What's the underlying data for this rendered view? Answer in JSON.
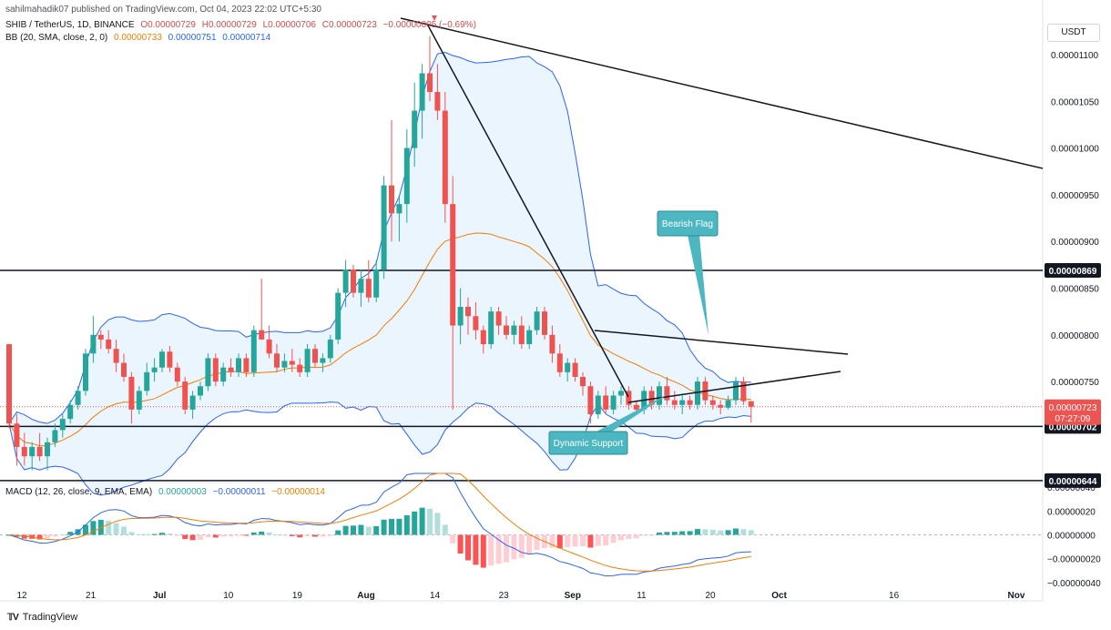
{
  "published": "sahilmahadik07 published on TradingView.com, Oct 04, 2023 22:02 UTC+5:30",
  "symbol_line": {
    "symbol": "SHIB / TetherUS, 1D, BINANCE",
    "o": "O0.00000729",
    "h": "H0.00000729",
    "l": "L0.00000706",
    "c": "C0.00000723",
    "change": "−0.00000005 (−0.69%)"
  },
  "bb_line": {
    "label": "BB (20, SMA, close, 2, 0)",
    "basis": "0.00000733",
    "upper": "0.00000751",
    "lower": "0.00000714"
  },
  "macd_line": {
    "label": "MACD (12, 26, close, 9, EMA, EMA)",
    "hist": "0.00000003",
    "macd": "−0.00000011",
    "signal": "−0.00000014"
  },
  "currency": "USDT",
  "brand": "TradingView",
  "colors": {
    "up": "#26a69a",
    "down": "#ef5350",
    "bb_line": "#2962ff",
    "bb_fill": "#e3f2fd",
    "basis": "#f57c00",
    "callout": "#4cb6c1"
  },
  "chart_data": {
    "type": "candlestick",
    "price_axis": {
      "ticks": [
        "0.00001100",
        "0.00001050",
        "0.00001000",
        "0.00000950",
        "0.00000900",
        "0.00000850",
        "0.00000800",
        "0.00000750"
      ],
      "tick_values": [
        1.1e-05,
        1.05e-05,
        1e-05,
        9.5e-06,
        9e-06,
        8.5e-06,
        8e-06,
        7.5e-06
      ]
    },
    "macd_axis": {
      "ticks": [
        "0.00000040",
        "0.00000020",
        "0.00000000",
        "−0.00000020",
        "−0.00000040"
      ],
      "tick_values": [
        4e-07,
        2e-07,
        0,
        -2e-07,
        -4e-07
      ]
    },
    "x_axis": {
      "labels": [
        "12",
        "21",
        "Jul",
        "10",
        "19",
        "Aug",
        "14",
        "23",
        "Sep",
        "11",
        "20",
        "Oct",
        "16",
        "Nov"
      ],
      "label_bars": [
        0,
        9,
        18,
        27,
        36,
        45,
        54,
        63,
        72,
        81,
        90,
        99,
        114,
        130
      ]
    },
    "horizontal_levels": [
      {
        "label": "0.00000869",
        "value": 8.69e-06
      },
      {
        "label": "0.00000702",
        "value": 7.02e-06
      },
      {
        "label": "0.00000644",
        "value": 6.44e-06
      }
    ],
    "current_price": {
      "label": "0.00000723",
      "countdown": "07:27:09",
      "value": 7.23e-06
    },
    "annotations": [
      "Bearish Flag",
      "Dynamic Support"
    ],
    "candles": [
      [
        7.9,
        7.9,
        7.0,
        7.05
      ],
      [
        7.05,
        7.15,
        6.6,
        6.8
      ],
      [
        6.8,
        6.95,
        6.6,
        6.7
      ],
      [
        6.7,
        6.85,
        6.55,
        6.8
      ],
      [
        6.8,
        6.95,
        6.65,
        6.7
      ],
      [
        6.7,
        6.9,
        6.55,
        6.85
      ],
      [
        6.85,
        7.05,
        6.8,
        6.98
      ],
      [
        6.98,
        7.15,
        6.9,
        7.1
      ],
      [
        7.1,
        7.3,
        7.05,
        7.25
      ],
      [
        7.25,
        7.45,
        7.2,
        7.4
      ],
      [
        7.4,
        7.85,
        7.35,
        7.8
      ],
      [
        7.8,
        8.2,
        7.7,
        8.0
      ],
      [
        8.0,
        8.05,
        7.85,
        7.95
      ],
      [
        7.95,
        8.05,
        7.8,
        7.85
      ],
      [
        7.85,
        7.95,
        7.6,
        7.7
      ],
      [
        7.7,
        7.8,
        7.5,
        7.55
      ],
      [
        7.55,
        7.6,
        7.05,
        7.2
      ],
      [
        7.2,
        7.45,
        7.15,
        7.4
      ],
      [
        7.4,
        7.7,
        7.35,
        7.6
      ],
      [
        7.6,
        7.75,
        7.5,
        7.65
      ],
      [
        7.65,
        7.85,
        7.6,
        7.82
      ],
      [
        7.82,
        7.88,
        7.6,
        7.65
      ],
      [
        7.65,
        7.7,
        7.45,
        7.5
      ],
      [
        7.5,
        7.55,
        7.15,
        7.2
      ],
      [
        7.2,
        7.4,
        7.1,
        7.35
      ],
      [
        7.35,
        7.5,
        7.3,
        7.45
      ],
      [
        7.45,
        7.8,
        7.4,
        7.75
      ],
      [
        7.75,
        7.8,
        7.45,
        7.5
      ],
      [
        7.5,
        7.7,
        7.45,
        7.65
      ],
      [
        7.65,
        7.75,
        7.55,
        7.6
      ],
      [
        7.6,
        7.8,
        7.55,
        7.75
      ],
      [
        7.75,
        7.8,
        7.55,
        7.6
      ],
      [
        7.6,
        8.1,
        7.55,
        8.05
      ],
      [
        8.05,
        8.6,
        7.95,
        7.95
      ],
      [
        7.95,
        8.1,
        7.75,
        7.8
      ],
      [
        7.8,
        7.9,
        7.6,
        7.65
      ],
      [
        7.65,
        7.8,
        7.6,
        7.72
      ],
      [
        7.72,
        7.85,
        7.6,
        7.68
      ],
      [
        7.68,
        7.75,
        7.55,
        7.6
      ],
      [
        7.6,
        7.9,
        7.55,
        7.85
      ],
      [
        7.85,
        7.9,
        7.65,
        7.7
      ],
      [
        7.7,
        7.8,
        7.6,
        7.75
      ],
      [
        7.75,
        8.0,
        7.7,
        7.95
      ],
      [
        7.95,
        8.5,
        7.9,
        8.45
      ],
      [
        8.45,
        8.8,
        8.3,
        8.7
      ],
      [
        8.7,
        8.75,
        8.4,
        8.45
      ],
      [
        8.45,
        8.7,
        8.3,
        8.6
      ],
      [
        8.6,
        8.8,
        8.35,
        8.4
      ],
      [
        8.4,
        8.8,
        8.35,
        8.7
      ],
      [
        8.7,
        9.7,
        8.6,
        9.6
      ],
      [
        9.6,
        10.3,
        9.0,
        9.3
      ],
      [
        9.3,
        9.5,
        9.0,
        9.4
      ],
      [
        9.4,
        10.2,
        9.2,
        10.0
      ],
      [
        10.0,
        10.7,
        9.8,
        10.4
      ],
      [
        10.4,
        10.9,
        10.1,
        10.8
      ],
      [
        10.8,
        11.2,
        10.5,
        10.6
      ],
      [
        10.6,
        10.9,
        10.3,
        10.4
      ],
      [
        10.4,
        10.6,
        9.2,
        9.4
      ],
      [
        9.4,
        9.7,
        7.2,
        8.1
      ],
      [
        8.1,
        8.5,
        7.9,
        8.3
      ],
      [
        8.3,
        8.4,
        8.0,
        8.2
      ],
      [
        8.2,
        8.35,
        7.95,
        8.05
      ],
      [
        8.05,
        8.1,
        7.8,
        7.9
      ],
      [
        7.9,
        8.3,
        7.85,
        8.25
      ],
      [
        8.25,
        8.3,
        8.0,
        8.1
      ],
      [
        8.1,
        8.2,
        7.95,
        8.0
      ],
      [
        8.0,
        8.15,
        7.9,
        8.1
      ],
      [
        8.1,
        8.2,
        7.85,
        7.9
      ],
      [
        7.9,
        8.1,
        7.85,
        8.05
      ],
      [
        8.05,
        8.3,
        8.0,
        8.25
      ],
      [
        8.25,
        8.3,
        7.95,
        8.0
      ],
      [
        8.0,
        8.1,
        7.7,
        7.8
      ],
      [
        7.8,
        7.9,
        7.55,
        7.6
      ],
      [
        7.6,
        7.75,
        7.5,
        7.7
      ],
      [
        7.7,
        7.75,
        7.5,
        7.55
      ],
      [
        7.55,
        7.6,
        7.35,
        7.45
      ],
      [
        7.45,
        7.5,
        7.05,
        7.15
      ],
      [
        7.15,
        7.4,
        7.1,
        7.35
      ],
      [
        7.35,
        7.45,
        7.15,
        7.2
      ],
      [
        7.2,
        7.4,
        7.15,
        7.35
      ],
      [
        7.35,
        7.45,
        7.25,
        7.4
      ],
      [
        7.4,
        7.45,
        7.2,
        7.25
      ],
      [
        7.25,
        7.3,
        7.15,
        7.2
      ],
      [
        7.2,
        7.45,
        7.15,
        7.4
      ],
      [
        7.4,
        7.45,
        7.2,
        7.25
      ],
      [
        7.25,
        7.5,
        7.2,
        7.45
      ],
      [
        7.45,
        7.55,
        7.25,
        7.3
      ],
      [
        7.3,
        7.4,
        7.2,
        7.25
      ],
      [
        7.25,
        7.35,
        7.15,
        7.3
      ],
      [
        7.3,
        7.35,
        7.2,
        7.25
      ],
      [
        7.25,
        7.55,
        7.2,
        7.5
      ],
      [
        7.5,
        7.55,
        7.25,
        7.3
      ],
      [
        7.3,
        7.35,
        7.2,
        7.25
      ],
      [
        7.25,
        7.3,
        7.15,
        7.22
      ],
      [
        7.22,
        7.35,
        7.2,
        7.3
      ],
      [
        7.3,
        7.55,
        7.25,
        7.5
      ],
      [
        7.5,
        7.55,
        7.25,
        7.29
      ],
      [
        7.29,
        7.29,
        7.06,
        7.23
      ]
    ]
  }
}
